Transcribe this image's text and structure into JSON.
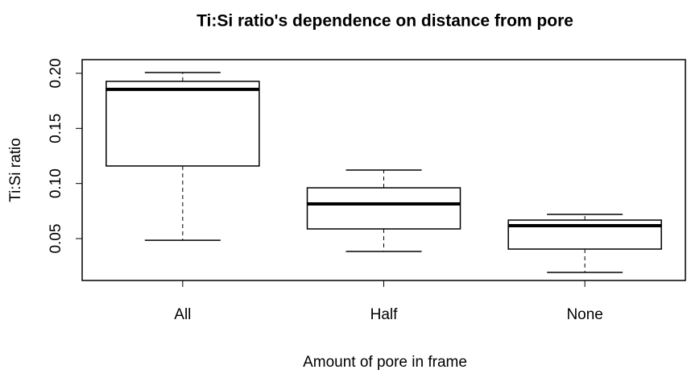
{
  "chart_data": {
    "type": "boxplot",
    "title": "Ti:Si ratio's dependence on distance from pore",
    "x_label": "Amount of pore in frame",
    "y_label": "Ti:Si ratio",
    "categories": [
      "All",
      "Half",
      "None"
    ],
    "whisker_low": [
      0.0485,
      0.0383,
      0.0193
    ],
    "q1": [
      0.1159,
      0.0588,
      0.0405
    ],
    "median": [
      0.1854,
      0.0815,
      0.0617
    ],
    "q3": [
      0.1927,
      0.0961,
      0.0668
    ],
    "whisker_high": [
      0.2007,
      0.1122,
      0.072
    ],
    "ylim": [
      0.012,
      0.2124
    ],
    "yticks": [
      0.05,
      {
        "value": 0.1,
        "label": "0.10"
      },
      0.15,
      {
        "value": 0.2,
        "label": "0.20"
      }
    ],
    "color": "#000000"
  }
}
